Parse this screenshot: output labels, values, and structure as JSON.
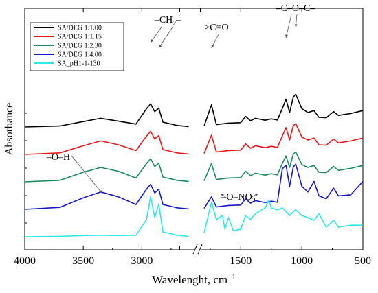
{
  "chart_data": {
    "type": "line",
    "title": "",
    "xlabel": "Wavelenght, cm",
    "xlabel_sup": "−1",
    "ylabel": "Absorbance",
    "x_ticks": [
      "4000",
      "3500",
      "3000",
      "2500",
      "2000",
      "1500",
      "1000",
      "500"
    ],
    "x_tick_values": [
      4000,
      3500,
      3000,
      2500,
      2000,
      1500,
      1000,
      500
    ],
    "x_tick_labels": [
      "4000",
      "3500",
      "3000",
      "",
      "",
      "1500",
      "1000",
      "500"
    ],
    "xlim": [
      4000,
      500
    ],
    "axis_break": [
      2500,
      2000
    ],
    "legend_position": "top-left",
    "series": [
      {
        "name": "SA/DEG 1:1.00",
        "color": "#000000",
        "offset": 4,
        "points": [
          [
            4000,
            0.0
          ],
          [
            3700,
            0.05
          ],
          [
            3500,
            0.28
          ],
          [
            3350,
            0.45
          ],
          [
            3200,
            0.3
          ],
          [
            3050,
            0.15
          ],
          [
            2960,
            0.95
          ],
          [
            2925,
            1.2
          ],
          [
            2890,
            0.8
          ],
          [
            2855,
            0.98
          ],
          [
            2820,
            0.25
          ],
          [
            2700,
            0.08
          ],
          [
            2600,
            0.02
          ],
          [
            1800,
            0.05
          ],
          [
            1740,
            1.15
          ],
          [
            1700,
            0.12
          ],
          [
            1600,
            0.2
          ],
          [
            1500,
            0.22
          ],
          [
            1460,
            0.55
          ],
          [
            1420,
            0.32
          ],
          [
            1380,
            0.45
          ],
          [
            1300,
            0.35
          ],
          [
            1250,
            0.42
          ],
          [
            1200,
            0.36
          ],
          [
            1160,
            0.95
          ],
          [
            1130,
            1.45
          ],
          [
            1100,
            0.75
          ],
          [
            1070,
            1.55
          ],
          [
            1050,
            1.7
          ],
          [
            1000,
            0.95
          ],
          [
            950,
            0.75
          ],
          [
            900,
            0.85
          ],
          [
            860,
            0.5
          ],
          [
            800,
            0.48
          ],
          [
            740,
            0.8
          ],
          [
            700,
            0.6
          ],
          [
            600,
            0.7
          ],
          [
            500,
            0.85
          ]
        ]
      },
      {
        "name": "SA/DEG 1:1.15",
        "color": "#e8161b",
        "offset": 3,
        "points": [
          [
            4000,
            0.0
          ],
          [
            3700,
            0.08
          ],
          [
            3500,
            0.45
          ],
          [
            3350,
            0.7
          ],
          [
            3200,
            0.5
          ],
          [
            3050,
            0.2
          ],
          [
            2960,
            0.95
          ],
          [
            2925,
            1.2
          ],
          [
            2890,
            0.8
          ],
          [
            2855,
            0.98
          ],
          [
            2820,
            0.25
          ],
          [
            2700,
            0.08
          ],
          [
            2600,
            0.02
          ],
          [
            1800,
            0.05
          ],
          [
            1740,
            1.0
          ],
          [
            1700,
            0.12
          ],
          [
            1600,
            0.2
          ],
          [
            1500,
            0.22
          ],
          [
            1460,
            0.55
          ],
          [
            1420,
            0.32
          ],
          [
            1380,
            0.45
          ],
          [
            1300,
            0.35
          ],
          [
            1250,
            0.42
          ],
          [
            1200,
            0.36
          ],
          [
            1160,
            0.95
          ],
          [
            1130,
            1.4
          ],
          [
            1100,
            0.75
          ],
          [
            1070,
            1.5
          ],
          [
            1050,
            1.6
          ],
          [
            1000,
            0.9
          ],
          [
            950,
            0.75
          ],
          [
            900,
            0.85
          ],
          [
            860,
            0.5
          ],
          [
            800,
            0.48
          ],
          [
            740,
            0.8
          ],
          [
            700,
            0.6
          ],
          [
            600,
            0.7
          ],
          [
            500,
            0.85
          ]
        ]
      },
      {
        "name": "SA/DEG 1:2.30",
        "color": "#1a8a5a",
        "offset": 2,
        "points": [
          [
            4000,
            0.0
          ],
          [
            3700,
            0.08
          ],
          [
            3500,
            0.5
          ],
          [
            3350,
            0.75
          ],
          [
            3200,
            0.55
          ],
          [
            3050,
            0.2
          ],
          [
            2960,
            0.95
          ],
          [
            2925,
            1.2
          ],
          [
            2890,
            0.8
          ],
          [
            2855,
            0.98
          ],
          [
            2820,
            0.25
          ],
          [
            2700,
            0.08
          ],
          [
            2600,
            0.02
          ],
          [
            1800,
            0.05
          ],
          [
            1740,
            0.95
          ],
          [
            1700,
            0.12
          ],
          [
            1600,
            0.2
          ],
          [
            1500,
            0.22
          ],
          [
            1460,
            0.55
          ],
          [
            1420,
            0.32
          ],
          [
            1380,
            0.45
          ],
          [
            1300,
            0.35
          ],
          [
            1250,
            0.42
          ],
          [
            1200,
            0.36
          ],
          [
            1160,
            0.95
          ],
          [
            1130,
            1.35
          ],
          [
            1100,
            0.75
          ],
          [
            1070,
            1.45
          ],
          [
            1050,
            1.55
          ],
          [
            1000,
            0.9
          ],
          [
            950,
            0.75
          ],
          [
            900,
            0.85
          ],
          [
            860,
            0.5
          ],
          [
            800,
            0.48
          ],
          [
            740,
            0.8
          ],
          [
            700,
            0.6
          ],
          [
            600,
            0.7
          ],
          [
            500,
            0.85
          ]
        ]
      },
      {
        "name": "SA/DEG 1:4.00",
        "color": "#1616c8",
        "offset": 1,
        "points": [
          [
            4000,
            0.0
          ],
          [
            3700,
            0.1
          ],
          [
            3500,
            0.6
          ],
          [
            3350,
            0.9
          ],
          [
            3200,
            0.65
          ],
          [
            3050,
            0.25
          ],
          [
            2960,
            1.05
          ],
          [
            2925,
            1.3
          ],
          [
            2890,
            0.85
          ],
          [
            2855,
            1.05
          ],
          [
            2820,
            0.25
          ],
          [
            2700,
            0.08
          ],
          [
            2600,
            0.02
          ],
          [
            1800,
            0.05
          ],
          [
            1740,
            0.65
          ],
          [
            1700,
            0.12
          ],
          [
            1600,
            0.2
          ],
          [
            1500,
            0.22
          ],
          [
            1460,
            0.55
          ],
          [
            1420,
            0.32
          ],
          [
            1380,
            0.45
          ],
          [
            1300,
            0.35
          ],
          [
            1250,
            0.42
          ],
          [
            1200,
            0.36
          ],
          [
            1160,
            2.1
          ],
          [
            1130,
            2.3
          ],
          [
            1100,
            1.2
          ],
          [
            1070,
            2.2
          ],
          [
            1050,
            2.35
          ],
          [
            1000,
            1.2
          ],
          [
            950,
            0.9
          ],
          [
            900,
            1.45
          ],
          [
            860,
            0.7
          ],
          [
            800,
            0.55
          ],
          [
            740,
            1.1
          ],
          [
            700,
            0.7
          ],
          [
            600,
            0.75
          ],
          [
            500,
            1.45
          ]
        ]
      },
      {
        "name": "SA_pH1-1-130",
        "color": "#2ee8e8",
        "offset": 0,
        "points": [
          [
            4000,
            0.0
          ],
          [
            3700,
            0.02
          ],
          [
            3500,
            0.06
          ],
          [
            3350,
            0.08
          ],
          [
            3200,
            0.06
          ],
          [
            3050,
            0.08
          ],
          [
            2960,
            0.9
          ],
          [
            2925,
            2.1
          ],
          [
            2890,
            1.0
          ],
          [
            2855,
            1.7
          ],
          [
            2820,
            0.25
          ],
          [
            2700,
            0.08
          ],
          [
            2600,
            0.02
          ],
          [
            1800,
            0.2
          ],
          [
            1740,
            1.8
          ],
          [
            1700,
            0.9
          ],
          [
            1650,
            1.1
          ],
          [
            1630,
            0.4
          ],
          [
            1600,
            1.0
          ],
          [
            1560,
            0.3
          ],
          [
            1500,
            0.4
          ],
          [
            1460,
            1.1
          ],
          [
            1420,
            0.9
          ],
          [
            1380,
            1.2
          ],
          [
            1300,
            1.5
          ],
          [
            1270,
            1.9
          ],
          [
            1250,
            1.5
          ],
          [
            1200,
            1.4
          ],
          [
            1160,
            1.5
          ],
          [
            1130,
            1.3
          ],
          [
            1100,
            1.1
          ],
          [
            1070,
            1.3
          ],
          [
            1050,
            1.4
          ],
          [
            1000,
            1.1
          ],
          [
            950,
            1.0
          ],
          [
            900,
            0.85
          ],
          [
            860,
            1.2
          ],
          [
            800,
            0.5
          ],
          [
            740,
            0.85
          ],
          [
            700,
            0.5
          ],
          [
            600,
            0.6
          ],
          [
            500,
            0.6
          ]
        ]
      }
    ],
    "annotations": [
      {
        "text": "–CH",
        "sub": "2",
        "tail": "–"
      },
      {
        "text": ">C=O"
      },
      {
        "text": "–C–O–C–"
      },
      {
        "text": "–O–H"
      },
      {
        "text": "–O–NO",
        "sub": "2"
      }
    ]
  }
}
